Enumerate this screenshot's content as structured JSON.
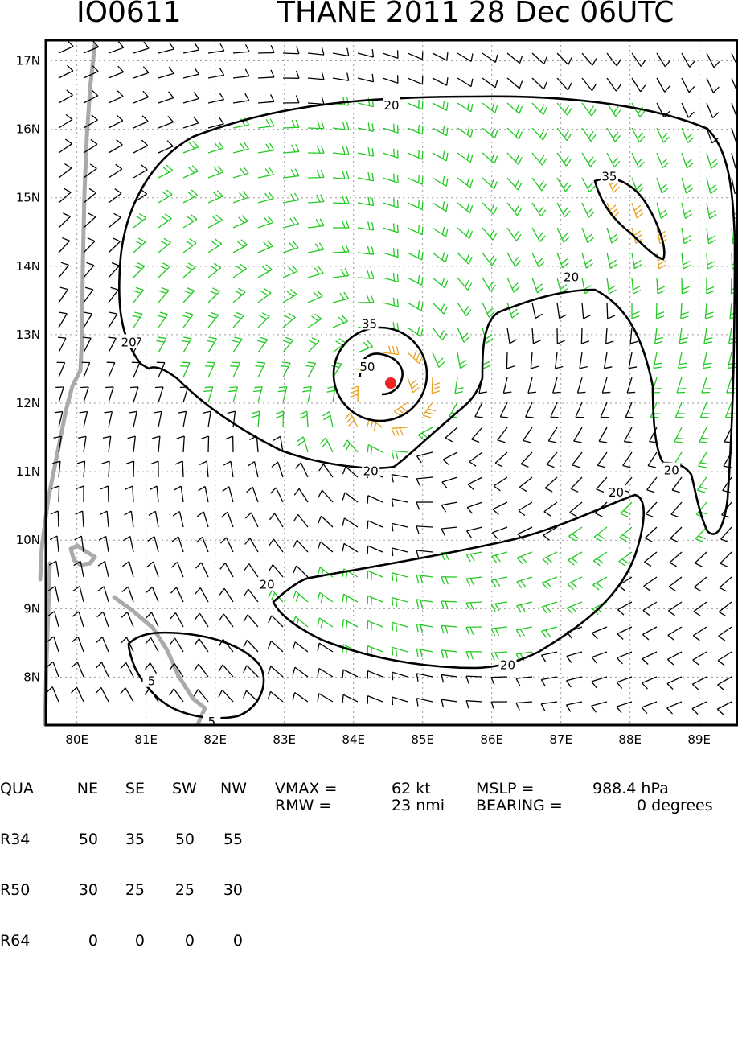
{
  "header": {
    "storm_id": "IO0611",
    "title": "THANE 2011 28 Dec 06UTC"
  },
  "chart_data": {
    "type": "contour wind-barb map",
    "x_ticks": [
      "80E",
      "81E",
      "82E",
      "83E",
      "84E",
      "85E",
      "86E",
      "87E",
      "88E",
      "89E"
    ],
    "x_tick_values": [
      80,
      81,
      82,
      83,
      84,
      85,
      86,
      87,
      88,
      89
    ],
    "y_ticks": [
      "17N",
      "16N",
      "15N",
      "14N",
      "13N",
      "12N",
      "11N",
      "10N",
      "9N",
      "8N"
    ],
    "y_tick_values": [
      17,
      16,
      15,
      14,
      13,
      12,
      11,
      10,
      9,
      8
    ],
    "xlim": [
      79.55,
      89.55
    ],
    "ylim": [
      7.3,
      17.3
    ],
    "grid": true,
    "storm_center": {
      "lon": 84.55,
      "lat": 12.18
    },
    "contour_labels": [
      {
        "text": "20",
        "lon": 84.55,
        "lat": 16.36
      },
      {
        "text": "35",
        "lon": 87.7,
        "lat": 15.32
      },
      {
        "text": "20",
        "lon": 87.15,
        "lat": 13.85
      },
      {
        "text": "35",
        "lon": 84.23,
        "lat": 13.17
      },
      {
        "text": "50",
        "lon": 84.2,
        "lat": 12.54
      },
      {
        "text": "20",
        "lon": 80.75,
        "lat": 12.9
      },
      {
        "text": "20",
        "lon": 84.25,
        "lat": 11.02
      },
      {
        "text": "20",
        "lon": 88.6,
        "lat": 11.03
      },
      {
        "text": "20",
        "lon": 87.8,
        "lat": 10.71
      },
      {
        "text": "20",
        "lon": 82.75,
        "lat": 9.36
      },
      {
        "text": "5",
        "lon": 81.08,
        "lat": 7.95
      },
      {
        "text": "5",
        "lon": 81.95,
        "lat": 7.36
      },
      {
        "text": "20",
        "lon": 86.23,
        "lat": 8.19
      }
    ],
    "colors": {
      "r20_34": "#22c922",
      "r34_50": "#e8a020",
      "below20": "#000000",
      "center": "#ee2222",
      "coast": "#aaaaaa"
    }
  },
  "wind_radii": {
    "header": [
      "QUA",
      "NE",
      "SE",
      "SW",
      "NW"
    ],
    "rows": [
      {
        "label": "R34",
        "values": [
          "50",
          "35",
          "50",
          "55"
        ]
      },
      {
        "label": "R50",
        "values": [
          "30",
          "25",
          "25",
          "30"
        ]
      },
      {
        "label": "R64",
        "values": [
          "0",
          "0",
          "0",
          "0"
        ]
      }
    ]
  },
  "stats": {
    "line1": {
      "vmax_label": "VMAX =",
      "vmax_value": "62 kt",
      "mslp_label": "MSLP =",
      "mslp_value": "988.4 hPa"
    },
    "line2": {
      "rmw_label": "RMW =",
      "rmw_value": "23 nmi",
      "bearing_label": "BEARING =",
      "bearing_value": "0 degrees"
    }
  }
}
